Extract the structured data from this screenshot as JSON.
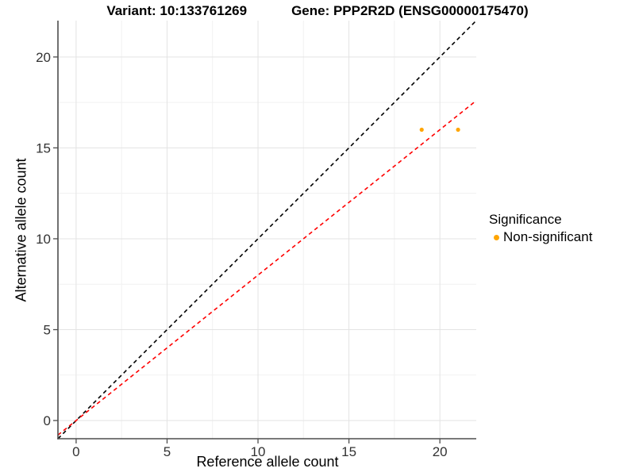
{
  "chart_data": {
    "type": "scatter",
    "title_parts": [
      "Variant: 10:133761269",
      "Gene: PPP2R2D (ENSG00000175470)"
    ],
    "xlabel": "Reference allele count",
    "ylabel": "Alternative allele count",
    "xlim": [
      -1,
      22
    ],
    "ylim": [
      -1,
      22
    ],
    "xticks": [
      0,
      5,
      10,
      15,
      20
    ],
    "yticks": [
      0,
      5,
      10,
      15,
      20
    ],
    "minor_xticks": [
      2.5,
      7.5,
      12.5,
      17.5
    ],
    "minor_yticks": [
      2.5,
      7.5,
      12.5,
      17.5
    ],
    "grid": true,
    "legend_position": "right",
    "series": [
      {
        "name": "Non-significant",
        "color": "#FFA500",
        "points": [
          {
            "x": 19,
            "y": 16
          },
          {
            "x": 21,
            "y": 16
          }
        ]
      }
    ],
    "reference_lines": [
      {
        "name": "identity-line",
        "slope": 1.0,
        "intercept": 0,
        "color": "#000000",
        "style": "dashed"
      },
      {
        "name": "expected-ratio-line",
        "slope": 0.8,
        "intercept": 0,
        "color": "#FF0000",
        "style": "dashed"
      }
    ],
    "legend": {
      "title": "Significance",
      "items": [
        {
          "label": "Non-significant",
          "color": "#FFA500"
        }
      ]
    },
    "colors": {
      "major_grid": "#e3e3e3",
      "minor_grid": "#f1f1f1",
      "axis_line": "#4d4d4d",
      "tick_text": "#333333"
    }
  }
}
